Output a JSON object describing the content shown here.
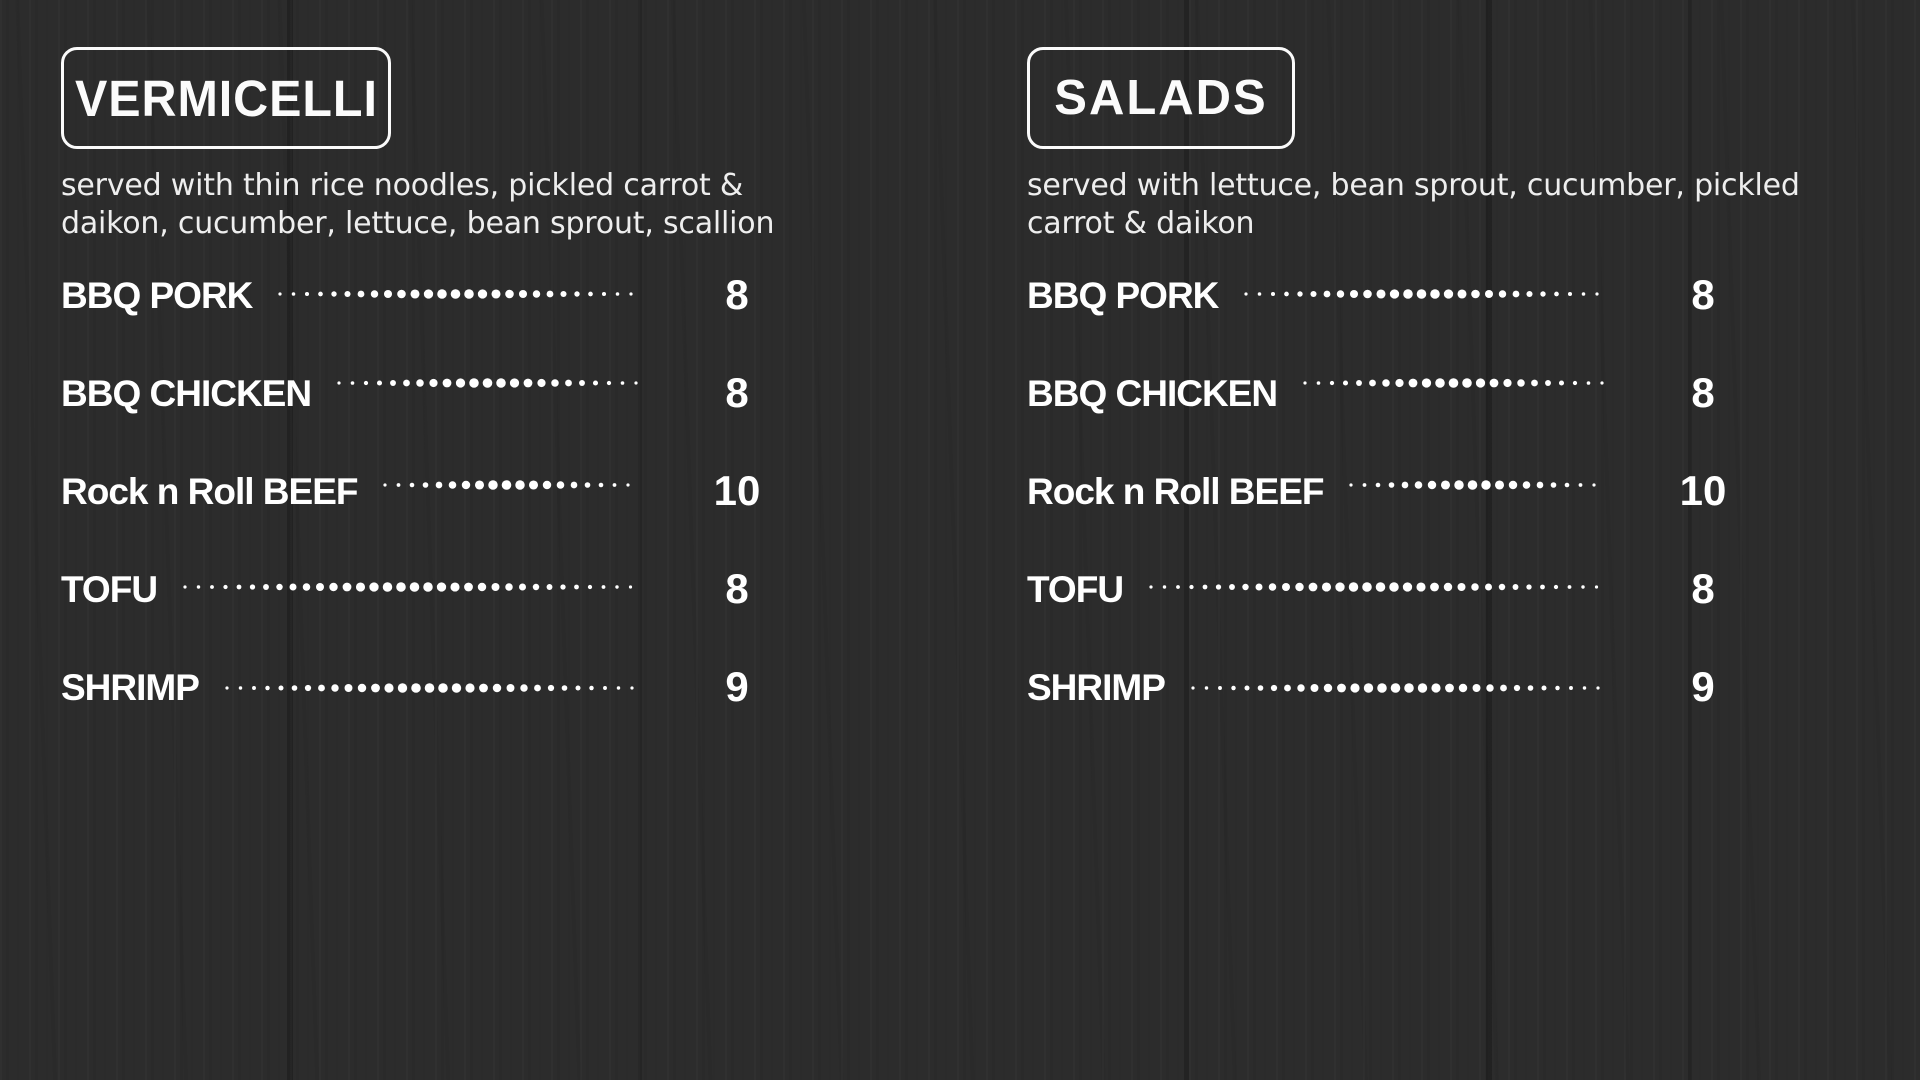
{
  "colors": {
    "background": "#2c2c2c",
    "text": "#ffffff",
    "border": "#fbfbfb"
  },
  "sections": [
    {
      "title": "VERMICELLI",
      "description": "served with thin rice noodles, pickled carrot &\ndaikon, cucumber, lettuce, bean sprout, scallion",
      "items": [
        {
          "name": "BBQ PORK",
          "price": "8"
        },
        {
          "name": "BBQ CHICKEN",
          "price": "8"
        },
        {
          "name": "Rock n Roll BEEF",
          "price": "10"
        },
        {
          "name": "TOFU",
          "price": "8"
        },
        {
          "name": "SHRIMP",
          "price": "9"
        }
      ]
    },
    {
      "title": "SALADS",
      "description": "served with lettuce, bean sprout, cucumber, pickled\ncarrot & daikon",
      "items": [
        {
          "name": "BBQ PORK",
          "price": "8"
        },
        {
          "name": "BBQ CHICKEN",
          "price": "8"
        },
        {
          "name": "Rock n Roll BEEF",
          "price": "10"
        },
        {
          "name": "TOFU",
          "price": "8"
        },
        {
          "name": "SHRIMP",
          "price": "9"
        }
      ]
    }
  ]
}
